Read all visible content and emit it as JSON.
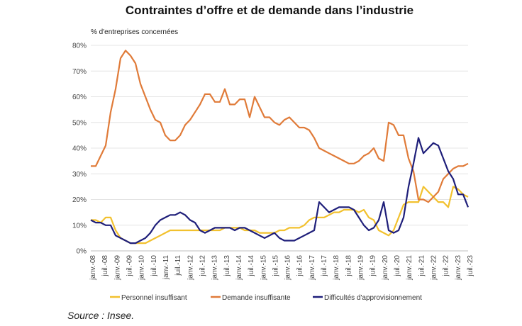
{
  "chart_data": {
    "type": "line",
    "title": "Contraintes d’offre et de demande dans l’industrie",
    "ylabel": "% d'entreprises concernées",
    "ylim": [
      0,
      80
    ],
    "yticks": [
      "0%",
      "10%",
      "20%",
      "30%",
      "40%",
      "50%",
      "60%",
      "70%",
      "80%"
    ],
    "xticks": [
      "janv.-08",
      "juil.-08",
      "janv.-09",
      "juil.-09",
      "janv.-10",
      "juil.-10",
      "janv.-11",
      "juil.-11",
      "janv.-12",
      "juil.-12",
      "janv.-13",
      "juil.-13",
      "janv.-14",
      "juil.-14",
      "janv.-15",
      "juil.-15",
      "janv.-16",
      "juil.-16",
      "janv.-17",
      "juil.-17",
      "janv.-18",
      "juil.-18",
      "janv.-19",
      "juil.-19",
      "janv.-20",
      "juil.-20",
      "janv.-21",
      "juil.-21",
      "janv.-22",
      "juil.-22",
      "janv.-23",
      "juil.-23"
    ],
    "legend_position": "bottom",
    "series": [
      {
        "name": "Personnel insuffisant",
        "color": "#f2c12e",
        "values": [
          12,
          12,
          11,
          13,
          13,
          8,
          5,
          4,
          3,
          3,
          3,
          3,
          4,
          5,
          6,
          7,
          8,
          8,
          8,
          8,
          8,
          8,
          8,
          8,
          8,
          8,
          8,
          9,
          9,
          9,
          9,
          8,
          8,
          8,
          7,
          7,
          7,
          7,
          8,
          8,
          9,
          9,
          9,
          10,
          12,
          13,
          13,
          13,
          14,
          15,
          15,
          16,
          16,
          16,
          15,
          16,
          13,
          12,
          8,
          7,
          6,
          8,
          13,
          18,
          19,
          19,
          19,
          25,
          23,
          21,
          19,
          19,
          17,
          25,
          24,
          22,
          21
        ]
      },
      {
        "name": "Demande insuffisante",
        "color": "#e07b39",
        "values": [
          33,
          33,
          37,
          41,
          54,
          63,
          75,
          78,
          76,
          73,
          65,
          60,
          55,
          51,
          50,
          45,
          43,
          43,
          45,
          49,
          51,
          54,
          57,
          61,
          61,
          58,
          58,
          63,
          57,
          57,
          59,
          59,
          52,
          60,
          56,
          52,
          52,
          50,
          49,
          51,
          52,
          50,
          48,
          48,
          47,
          44,
          40,
          39,
          38,
          37,
          36,
          35,
          34,
          34,
          35,
          37,
          38,
          40,
          36,
          35,
          50,
          49,
          45,
          45,
          36,
          31,
          20,
          20,
          19,
          21,
          23,
          28,
          30,
          32,
          33,
          33,
          34
        ]
      },
      {
        "name": "Difficultés d'approvisionnement",
        "color": "#1f1f7a",
        "values": [
          12,
          11,
          11,
          10,
          10,
          6,
          5,
          4,
          3,
          3,
          4,
          5,
          7,
          10,
          12,
          13,
          14,
          14,
          15,
          14,
          12,
          11,
          8,
          7,
          8,
          9,
          9,
          9,
          9,
          8,
          9,
          9,
          8,
          7,
          6,
          5,
          6,
          7,
          5,
          4,
          4,
          4,
          5,
          6,
          7,
          8,
          19,
          17,
          15,
          16,
          17,
          17,
          17,
          16,
          13,
          10,
          8,
          9,
          12,
          19,
          8,
          7,
          8,
          13,
          25,
          34,
          44,
          38,
          40,
          42,
          41,
          36,
          31,
          28,
          22,
          22,
          17
        ]
      }
    ]
  },
  "source": "Source : Insee."
}
